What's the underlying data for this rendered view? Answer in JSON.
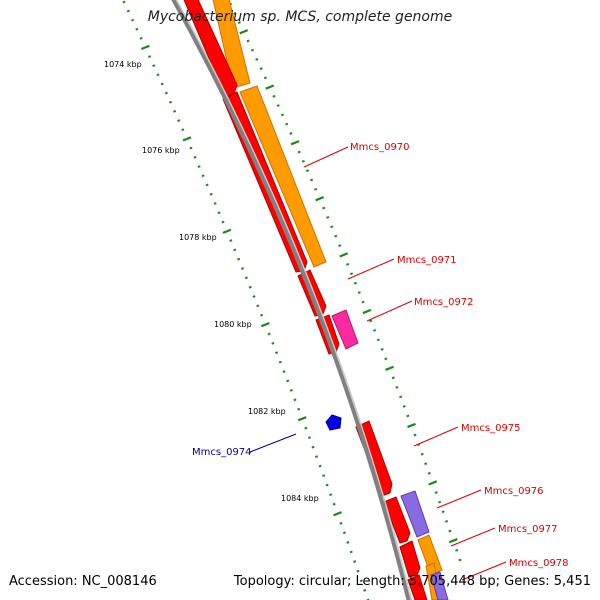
{
  "title": "Mycobacterium sp. MCS, complete genome",
  "footer": {
    "accession": "Accession: NC_008146",
    "topology": "Topology: circular; Length: 5,705,448 bp; Genes: 5,451"
  },
  "colors": {
    "forward_gene_outer": "#ff9a00",
    "cds": "#ff0000",
    "pink_gene": "#ff2aa0",
    "purple_gene": "#8a6ae0",
    "reverse_gene": "#0000ee",
    "backbone": "#808080",
    "ticks": "#1a8a1a",
    "label_red": "#dd0000",
    "label_blue": "#000099"
  },
  "scale_labels": [
    "1074 kbp",
    "1076 kbp",
    "1078 kbp",
    "1080 kbp",
    "1082 kbp",
    "1084 kbp"
  ],
  "gene_labels": [
    {
      "name": "Mmcs_0970",
      "strand": "forward"
    },
    {
      "name": "Mmcs_0971",
      "strand": "forward"
    },
    {
      "name": "Mmcs_0972",
      "strand": "forward"
    },
    {
      "name": "Mmcs_0975",
      "strand": "forward"
    },
    {
      "name": "Mmcs_0976",
      "strand": "forward"
    },
    {
      "name": "Mmcs_0977",
      "strand": "forward"
    },
    {
      "name": "Mmcs_0978",
      "strand": "forward"
    },
    {
      "name": "Mmcs_0974",
      "strand": "reverse"
    }
  ]
}
